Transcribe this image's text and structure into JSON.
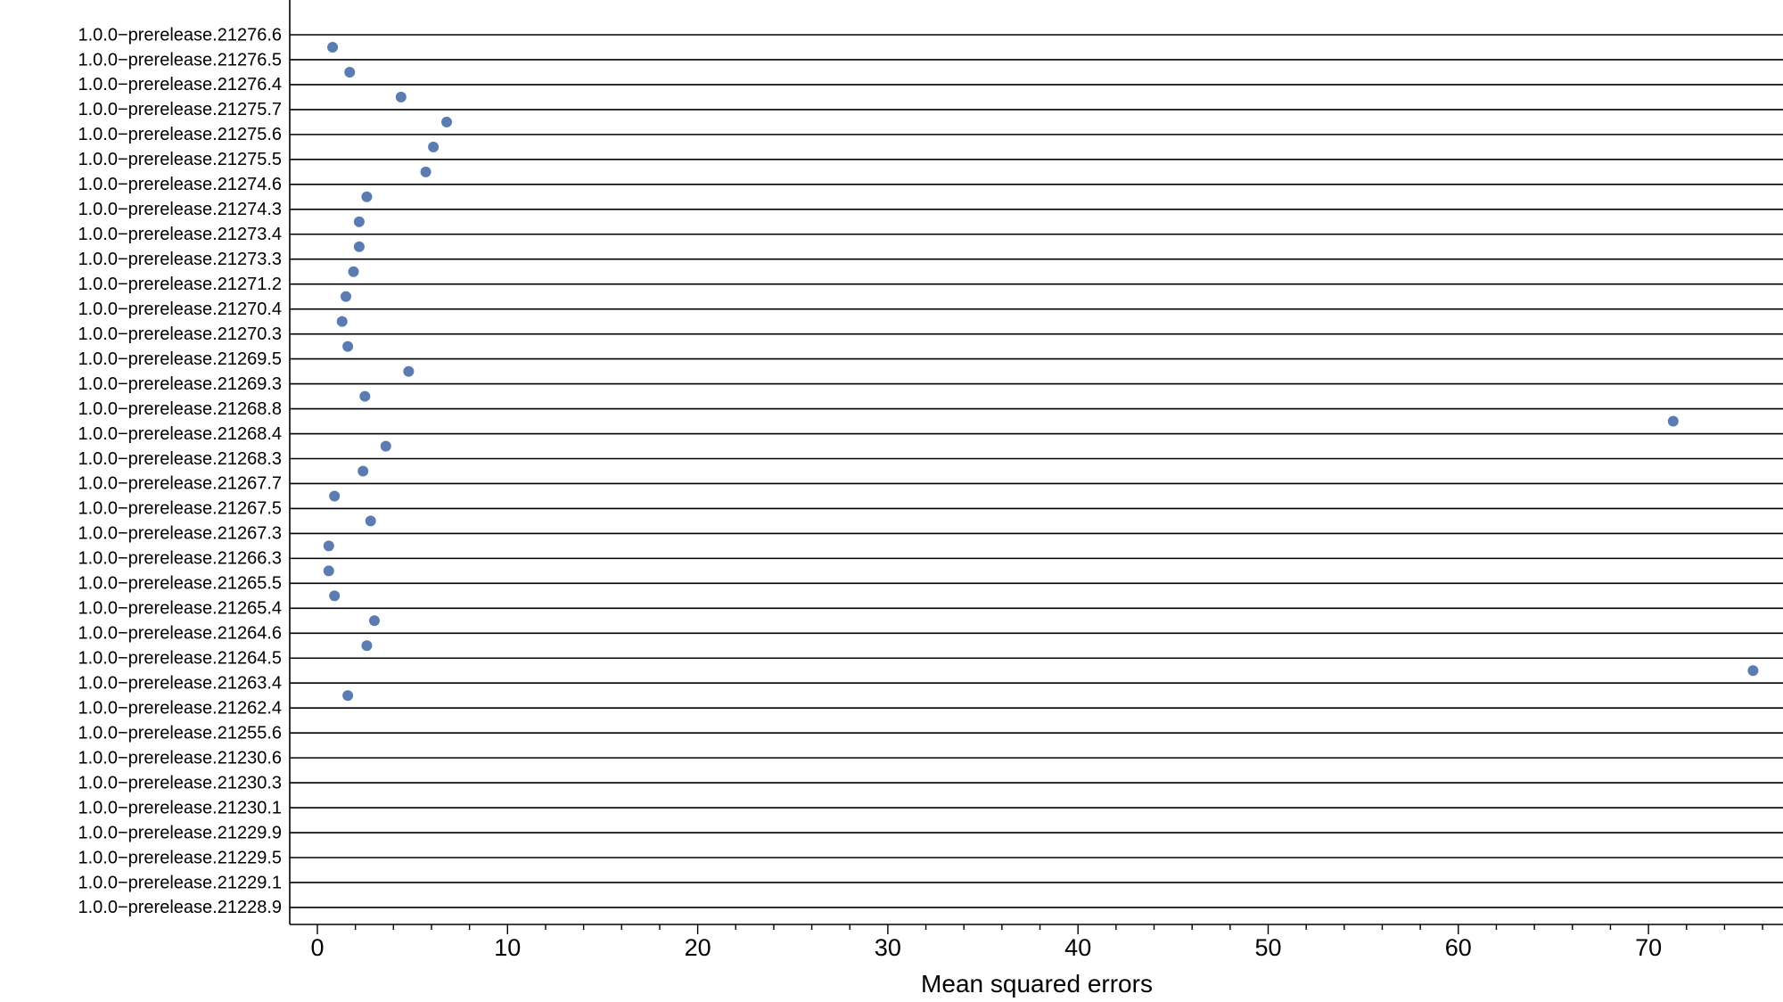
{
  "chart_data": {
    "type": "scatter",
    "title": "",
    "xlabel": "Mean squared errors",
    "ylabel": "",
    "xlim": [
      -1.5,
      77
    ],
    "xticks": [
      0,
      10,
      20,
      30,
      40,
      50,
      60,
      70
    ],
    "grid": "horizontal lines per category",
    "legend": "none",
    "point_color": "#5b7bb3",
    "categories": [
      "1.0.0−prerelease.21276.6",
      "1.0.0−prerelease.21276.5",
      "1.0.0−prerelease.21276.4",
      "1.0.0−prerelease.21275.7",
      "1.0.0−prerelease.21275.6",
      "1.0.0−prerelease.21275.5",
      "1.0.0−prerelease.21274.6",
      "1.0.0−prerelease.21274.3",
      "1.0.0−prerelease.21273.4",
      "1.0.0−prerelease.21273.3",
      "1.0.0−prerelease.21271.2",
      "1.0.0−prerelease.21270.4",
      "1.0.0−prerelease.21270.3",
      "1.0.0−prerelease.21269.5",
      "1.0.0−prerelease.21269.3",
      "1.0.0−prerelease.21268.8",
      "1.0.0−prerelease.21268.4",
      "1.0.0−prerelease.21268.3",
      "1.0.0−prerelease.21267.7",
      "1.0.0−prerelease.21267.5",
      "1.0.0−prerelease.21267.3",
      "1.0.0−prerelease.21266.3",
      "1.0.0−prerelease.21265.5",
      "1.0.0−prerelease.21265.4",
      "1.0.0−prerelease.21264.6",
      "1.0.0−prerelease.21264.5",
      "1.0.0−prerelease.21263.4",
      "1.0.0−prerelease.21262.4",
      "1.0.0−prerelease.21255.6",
      "1.0.0−prerelease.21230.6",
      "1.0.0−prerelease.21230.3",
      "1.0.0−prerelease.21230.1",
      "1.0.0−prerelease.21229.9",
      "1.0.0−prerelease.21229.5",
      "1.0.0−prerelease.21229.1",
      "1.0.0−prerelease.21228.9"
    ],
    "points": [
      {
        "category_index": 0.5,
        "x": 0.8
      },
      {
        "category_index": 1.5,
        "x": 1.7
      },
      {
        "category_index": 2.5,
        "x": 4.4
      },
      {
        "category_index": 3.5,
        "x": 6.8
      },
      {
        "category_index": 4.5,
        "x": 6.1
      },
      {
        "category_index": 5.5,
        "x": 5.7
      },
      {
        "category_index": 6.5,
        "x": 2.6
      },
      {
        "category_index": 7.5,
        "x": 2.2
      },
      {
        "category_index": 8.5,
        "x": 2.2
      },
      {
        "category_index": 9.5,
        "x": 1.9
      },
      {
        "category_index": 10.5,
        "x": 1.5
      },
      {
        "category_index": 11.5,
        "x": 1.3
      },
      {
        "category_index": 12.5,
        "x": 1.6
      },
      {
        "category_index": 13.5,
        "x": 4.8
      },
      {
        "category_index": 14.5,
        "x": 2.5
      },
      {
        "category_index": 15.5,
        "x": 71.3
      },
      {
        "category_index": 16.5,
        "x": 3.6
      },
      {
        "category_index": 17.5,
        "x": 2.4
      },
      {
        "category_index": 18.5,
        "x": 0.9
      },
      {
        "category_index": 19.5,
        "x": 2.8
      },
      {
        "category_index": 20.5,
        "x": 0.6
      },
      {
        "category_index": 21.5,
        "x": 0.6
      },
      {
        "category_index": 22.5,
        "x": 0.9
      },
      {
        "category_index": 23.5,
        "x": 3.0
      },
      {
        "category_index": 24.5,
        "x": 2.6
      },
      {
        "category_index": 25.5,
        "x": 75.5
      },
      {
        "category_index": 26.5,
        "x": 1.6
      }
    ]
  }
}
